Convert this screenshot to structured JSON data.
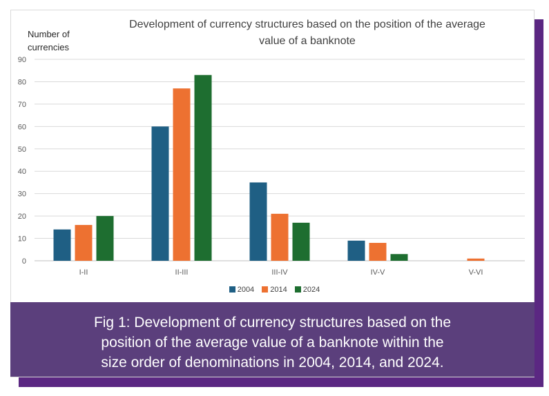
{
  "chart_data": {
    "type": "bar",
    "title": "Development of currency structures based on the position of the average value of a banknote",
    "title_lines": [
      "Development of currency structures based on the position of the average",
      "value of a banknote"
    ],
    "ylabel_lines": [
      "Number of",
      "currencies"
    ],
    "xlabel": "",
    "categories": [
      "I-II",
      "II-III",
      "III-IV",
      "IV-V",
      "V-VI"
    ],
    "yticks": [
      0,
      10,
      20,
      30,
      40,
      50,
      60,
      70,
      80,
      90
    ],
    "ylim": [
      0,
      90
    ],
    "grid": true,
    "legend_position": "bottom",
    "series": [
      {
        "name": "2004",
        "color": "#1f5f84",
        "values": [
          14,
          60,
          35,
          9,
          0
        ]
      },
      {
        "name": "2014",
        "color": "#ed7131",
        "values": [
          16,
          77,
          21,
          8,
          1
        ]
      },
      {
        "name": "2024",
        "color": "#1e6e30",
        "values": [
          20,
          83,
          17,
          3,
          0
        ]
      }
    ]
  },
  "caption": {
    "lines": [
      "Fig 1: Development of currency structures based on the",
      "position of the average value of a banknote within the",
      "size order of denominations in 2004, 2014, and 2024."
    ],
    "background": "#5b3f7c"
  }
}
